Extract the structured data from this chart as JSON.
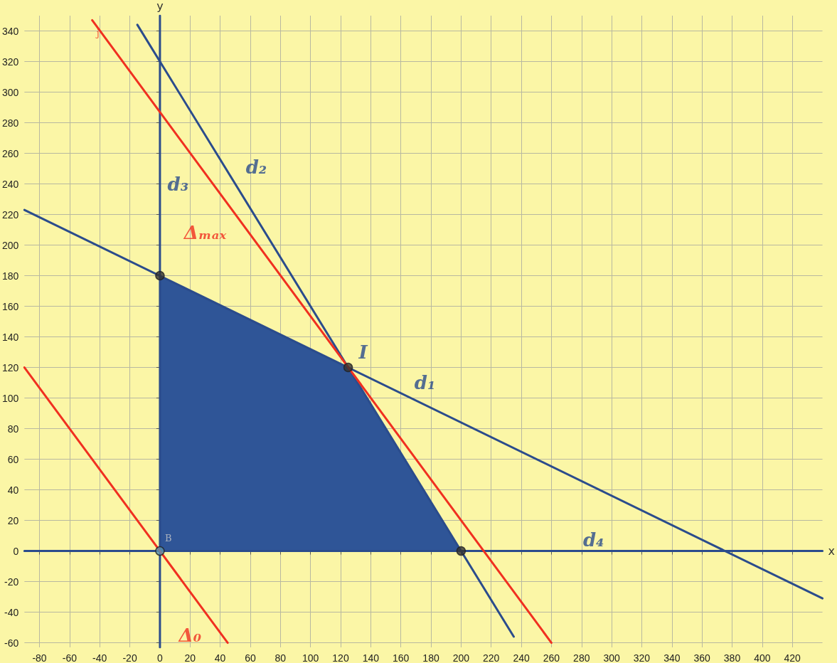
{
  "chart_data": {
    "type": "line",
    "xlabel": "x",
    "ylabel": "y",
    "xlim": [
      -90,
      440
    ],
    "ylim": [
      -63,
      350
    ],
    "xticks": [
      -80,
      -60,
      -40,
      -20,
      0,
      20,
      40,
      60,
      80,
      100,
      120,
      140,
      160,
      180,
      200,
      220,
      240,
      260,
      280,
      300,
      320,
      340,
      360,
      380,
      400,
      420
    ],
    "yticks": [
      -60,
      -40,
      -20,
      0,
      20,
      40,
      60,
      80,
      100,
      120,
      140,
      160,
      180,
      200,
      220,
      240,
      260,
      280,
      300,
      320,
      340
    ],
    "grid": true,
    "legend": false,
    "marker": "none",
    "line_style": "solid",
    "series": [
      {
        "type": "area",
        "color": "#2f5597",
        "x": [
          0,
          125,
          200
        ],
        "values": [
          180,
          120,
          0
        ]
      },
      {
        "name": "d₁",
        "color": "#2b4c8c",
        "x": [
          -90,
          440
        ],
        "values": [
          223,
          -31
        ]
      },
      {
        "name": "d₂",
        "color": "#2b4c8c",
        "x": [
          -15,
          235
        ],
        "values": [
          344,
          -56
        ]
      },
      {
        "name": "d₃",
        "color": "#2b4c8c",
        "x": [
          0,
          0
        ],
        "values": [
          -63,
          350
        ]
      },
      {
        "name": "d₄",
        "color": "#2b4c8c",
        "x": [
          -90,
          440
        ],
        "values": [
          0,
          0
        ]
      },
      {
        "name": "Δₘₐₓ",
        "color": "#f03020",
        "x": [
          -45,
          260
        ],
        "values": [
          347,
          -60
        ]
      },
      {
        "name": "Δ₀",
        "color": "#f03020",
        "x": [
          -90,
          45
        ],
        "values": [
          120,
          -60
        ]
      },
      {
        "type": "scatter",
        "marker": "circle",
        "x": [
          0,
          0,
          125,
          200
        ],
        "values": [
          0,
          180,
          120,
          0
        ],
        "colors": [
          "#5b93b0",
          "#333333",
          "#333333",
          "#333333"
        ]
      }
    ],
    "annotations": [
      {
        "text": "I",
        "x": 125,
        "y": 120
      },
      {
        "text": "B",
        "x": 0,
        "y": 0
      },
      {
        "text": "j",
        "x": -36,
        "y": 335
      }
    ]
  }
}
